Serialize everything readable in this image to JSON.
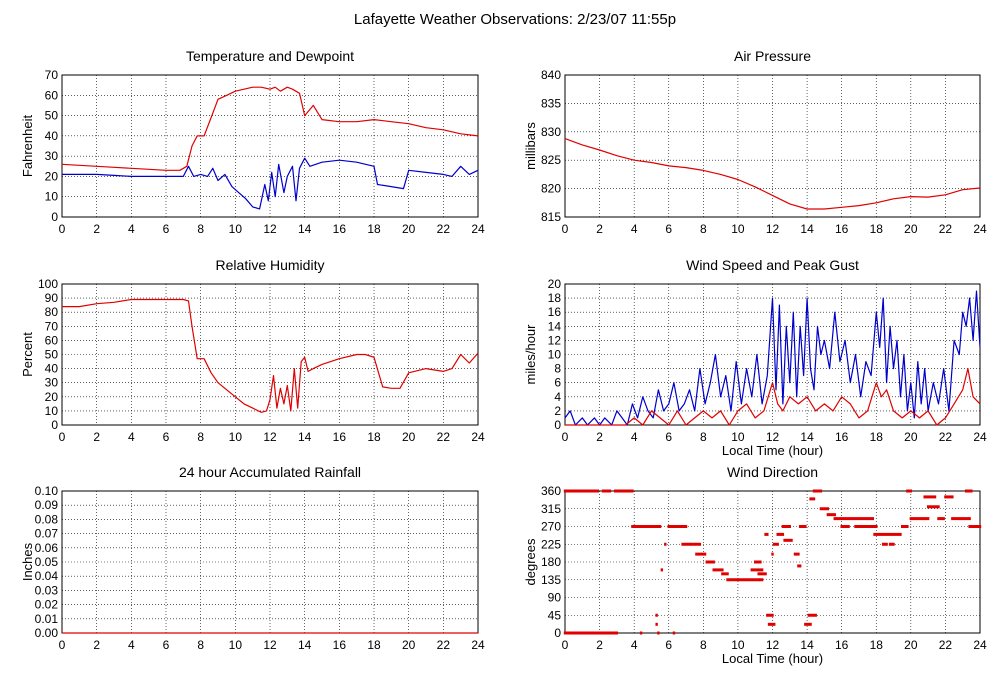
{
  "title": "Lafayette Weather Observations: 2/23/07 11:55p",
  "colors": {
    "red": "#e00000",
    "blue": "#0000cc",
    "grid": "#000000"
  },
  "chart_data": [
    {
      "type": "line",
      "title": "Temperature and Dewpoint",
      "xlabel": "",
      "ylabel": "Fahrenheit",
      "xlim": [
        0,
        24
      ],
      "ylim": [
        0,
        70
      ],
      "grid": true,
      "xticks": [
        "0",
        "2",
        "4",
        "6",
        "8",
        "10",
        "12",
        "14",
        "16",
        "18",
        "20",
        "22",
        "24"
      ],
      "yticks": [
        "0",
        "10",
        "20",
        "30",
        "40",
        "50",
        "60",
        "70"
      ],
      "series": [
        {
          "color": "#e00000",
          "x": [
            0,
            1,
            2,
            3,
            4,
            5,
            6,
            6.8,
            7.2,
            7.5,
            7.8,
            8.2,
            8.6,
            9,
            9.5,
            10,
            10.5,
            11,
            11.5,
            12,
            12.3,
            12.6,
            13,
            13.3,
            13.7,
            14,
            14.5,
            15,
            16,
            17,
            18,
            19,
            20,
            21,
            22,
            23,
            24
          ],
          "y": [
            26,
            25.5,
            25,
            24.5,
            24,
            23.5,
            23,
            23,
            25,
            35,
            40,
            40,
            49,
            58,
            60,
            62,
            63,
            64,
            64,
            63,
            64,
            62,
            64,
            63,
            61,
            50,
            55,
            48,
            47,
            47,
            48,
            47,
            46,
            44,
            43,
            41,
            40
          ]
        },
        {
          "color": "#0000cc",
          "x": [
            0,
            1,
            2,
            3,
            4,
            5,
            6,
            7,
            7.3,
            7.6,
            8,
            8.4,
            8.7,
            9,
            9.4,
            9.8,
            10.2,
            10.6,
            11,
            11.4,
            11.7,
            11.9,
            12.1,
            12.3,
            12.5,
            12.8,
            13,
            13.3,
            13.5,
            13.7,
            14,
            14.3,
            15,
            16,
            17,
            18,
            18.2,
            19,
            19.7,
            20,
            21,
            22,
            22.5,
            23,
            23.5,
            24
          ],
          "y": [
            21,
            21,
            21,
            20.5,
            20,
            20,
            20,
            20,
            25,
            20,
            21,
            20,
            24,
            18,
            21,
            15,
            12,
            9,
            5,
            4,
            16,
            8,
            22,
            10,
            26,
            12,
            20,
            25,
            8,
            24,
            29,
            25,
            27,
            28,
            27,
            25,
            16,
            15,
            14,
            23,
            22,
            21,
            20,
            25,
            21,
            23
          ]
        }
      ]
    },
    {
      "type": "line",
      "title": "Air Pressure",
      "xlabel": "",
      "ylabel": "millibars",
      "xlim": [
        0,
        24
      ],
      "ylim": [
        815,
        840
      ],
      "grid": true,
      "xticks": [
        "0",
        "2",
        "4",
        "6",
        "8",
        "10",
        "12",
        "14",
        "16",
        "18",
        "20",
        "22",
        "24"
      ],
      "yticks": [
        "815",
        "820",
        "825",
        "830",
        "835",
        "840"
      ],
      "series": [
        {
          "color": "#e00000",
          "x": [
            0,
            1,
            2,
            3,
            4,
            5,
            6,
            7,
            8,
            9,
            10,
            11,
            12,
            13,
            14,
            15,
            16,
            17,
            18,
            19,
            20,
            21,
            22,
            23,
            24
          ],
          "y": [
            828.8,
            827.7,
            826.8,
            825.8,
            825,
            824.6,
            824,
            823.7,
            823.2,
            822.5,
            821.6,
            820.3,
            818.8,
            817.3,
            816.4,
            816.4,
            816.7,
            817,
            817.5,
            818.2,
            818.6,
            818.5,
            818.9,
            819.8,
            820.1
          ]
        }
      ]
    },
    {
      "type": "line",
      "title": "Relative Humidity",
      "xlabel": "",
      "ylabel": "Percent",
      "xlim": [
        0,
        24
      ],
      "ylim": [
        0,
        100
      ],
      "grid": true,
      "xticks": [
        "0",
        "2",
        "4",
        "6",
        "8",
        "10",
        "12",
        "14",
        "16",
        "18",
        "20",
        "22",
        "24"
      ],
      "yticks": [
        "0",
        "10",
        "20",
        "30",
        "40",
        "50",
        "60",
        "70",
        "80",
        "90",
        "100"
      ],
      "series": [
        {
          "color": "#e00000",
          "x": [
            0,
            1,
            2,
            3,
            4,
            5,
            6,
            7,
            7.3,
            7.5,
            7.8,
            8.2,
            8.6,
            9,
            9.5,
            10,
            10.5,
            11,
            11.5,
            11.8,
            12,
            12.2,
            12.4,
            12.6,
            12.8,
            13,
            13.2,
            13.4,
            13.6,
            13.8,
            14,
            14.2,
            14.5,
            15,
            16,
            17,
            17.5,
            18,
            18.5,
            19,
            19.5,
            20,
            21,
            22,
            22.5,
            23,
            23.5,
            24
          ],
          "y": [
            84,
            84,
            86,
            87,
            89,
            89,
            89,
            89,
            88,
            70,
            47,
            47,
            37,
            30,
            25,
            20,
            15,
            12,
            9,
            10,
            18,
            35,
            12,
            26,
            15,
            28,
            10,
            40,
            12,
            45,
            48,
            38,
            40,
            43,
            47,
            50,
            50,
            48,
            27,
            26,
            26,
            37,
            40,
            38,
            40,
            50,
            44,
            51
          ]
        }
      ]
    },
    {
      "type": "line",
      "title": "Wind Speed and Peak Gust",
      "xlabel": "Local Time (hour)",
      "ylabel": "miles/hour",
      "xlim": [
        0,
        24
      ],
      "ylim": [
        0,
        20
      ],
      "grid": true,
      "xticks": [
        "0",
        "2",
        "4",
        "6",
        "8",
        "10",
        "12",
        "14",
        "16",
        "18",
        "20",
        "22",
        "24"
      ],
      "yticks": [
        "0",
        "2",
        "4",
        "6",
        "8",
        "10",
        "12",
        "14",
        "16",
        "18",
        "20"
      ],
      "series": [
        {
          "color": "#0000cc",
          "x": [
            0,
            0.3,
            0.6,
            1,
            1.3,
            1.7,
            2,
            2.3,
            2.7,
            3,
            3.3,
            3.6,
            3.9,
            4.2,
            4.5,
            4.8,
            5.1,
            5.4,
            5.7,
            6,
            6.3,
            6.6,
            6.9,
            7.2,
            7.5,
            7.8,
            8.1,
            8.4,
            8.7,
            9,
            9.3,
            9.6,
            9.9,
            10.2,
            10.5,
            10.8,
            11.1,
            11.4,
            11.7,
            12,
            12.2,
            12.4,
            12.6,
            12.8,
            13,
            13.2,
            13.4,
            13.6,
            13.8,
            14,
            14.2,
            14.4,
            14.6,
            14.8,
            15,
            15.3,
            15.6,
            15.9,
            16.2,
            16.5,
            16.8,
            17.1,
            17.4,
            17.7,
            18,
            18.2,
            18.4,
            18.6,
            18.8,
            19,
            19.2,
            19.4,
            19.6,
            19.8,
            20,
            20.2,
            20.4,
            20.6,
            20.8,
            21,
            21.3,
            21.6,
            21.9,
            22.2,
            22.5,
            22.8,
            23,
            23.2,
            23.4,
            23.6,
            23.8,
            24
          ],
          "y": [
            1,
            2,
            0,
            1,
            0,
            1,
            0,
            1,
            0,
            2,
            1,
            0,
            3,
            1,
            4,
            2,
            1,
            5,
            2,
            3,
            6,
            2,
            3,
            5,
            2,
            8,
            3,
            6,
            10,
            4,
            7,
            2,
            9,
            3,
            8,
            4,
            10,
            3,
            7,
            18,
            5,
            17,
            3,
            14,
            6,
            16,
            4,
            14,
            7,
            18,
            8,
            5,
            14,
            10,
            12,
            8,
            16,
            9,
            12,
            6,
            10,
            4,
            9,
            7,
            16,
            11,
            18,
            6,
            14,
            8,
            12,
            4,
            10,
            2,
            6,
            1,
            9,
            3,
            8,
            2,
            6,
            3,
            8,
            2,
            12,
            10,
            16,
            14,
            18,
            12,
            19,
            11
          ]
        },
        {
          "color": "#e00000",
          "x": [
            0,
            1,
            2,
            3,
            3.5,
            4,
            4.5,
            5,
            5.5,
            6,
            6.5,
            7,
            7.5,
            8,
            8.5,
            9,
            9.5,
            10,
            10.5,
            11,
            11.5,
            12,
            12.3,
            12.6,
            13,
            13.5,
            14,
            14.5,
            15,
            15.5,
            16,
            16.5,
            17,
            17.5,
            18,
            18.3,
            18.6,
            19,
            19.5,
            20,
            20.5,
            21,
            21.5,
            22,
            22.5,
            23,
            23.3,
            23.6,
            24
          ],
          "y": [
            0,
            0,
            0,
            0,
            0,
            1,
            0,
            2,
            1,
            0,
            2,
            0,
            1,
            2,
            1,
            2,
            0,
            2,
            3,
            1,
            2,
            6,
            3,
            2,
            4,
            3,
            4,
            2,
            3,
            2,
            4,
            3,
            1,
            2,
            6,
            4,
            5,
            2,
            1,
            2,
            1,
            2,
            0,
            1,
            3,
            5,
            8,
            4,
            3
          ]
        }
      ]
    },
    {
      "type": "line",
      "title": "24 hour Accumulated Rainfall",
      "xlabel": "",
      "ylabel": "Inches",
      "xlim": [
        0,
        24
      ],
      "ylim": [
        0,
        0.1
      ],
      "grid": true,
      "xticks": [
        "0",
        "2",
        "4",
        "6",
        "8",
        "10",
        "12",
        "14",
        "16",
        "18",
        "20",
        "22",
        "24"
      ],
      "yticks": [
        "0.00",
        "0.01",
        "0.02",
        "0.03",
        "0.04",
        "0.05",
        "0.06",
        "0.07",
        "0.08",
        "0.09",
        "0.10"
      ],
      "series": [
        {
          "color": "#e00000",
          "x": [
            0,
            24
          ],
          "y": [
            0,
            0
          ]
        }
      ]
    },
    {
      "type": "scatter",
      "title": "Wind Direction",
      "xlabel": "Local Time (hour)",
      "ylabel": "degrees",
      "xlim": [
        0,
        24
      ],
      "ylim": [
        0,
        360
      ],
      "grid": true,
      "xticks": [
        "0",
        "2",
        "4",
        "6",
        "8",
        "10",
        "12",
        "14",
        "16",
        "18",
        "20",
        "22",
        "24"
      ],
      "yticks": [
        "0",
        "45",
        "90",
        "135",
        "180",
        "225",
        "270",
        "315",
        "360"
      ],
      "series": [
        {
          "color": "#e00000",
          "segments": [
            [
              0,
              1.9,
              360
            ],
            [
              2.2,
              2.6,
              360
            ],
            [
              2.9,
              3.9,
              360
            ],
            [
              0,
              3.0,
              0
            ],
            [
              4.4,
              4.4,
              0
            ],
            [
              5.4,
              5.4,
              0
            ],
            [
              6.3,
              6.3,
              0
            ],
            [
              3.9,
              5.5,
              270
            ],
            [
              6,
              7.0,
              270
            ],
            [
              5.3,
              5.3,
              45
            ],
            [
              5.3,
              5.3,
              22
            ],
            [
              5.6,
              5.6,
              160
            ],
            [
              5.8,
              5.8,
              225
            ],
            [
              6.8,
              7.2,
              225
            ],
            [
              7.3,
              7.8,
              225
            ],
            [
              7.6,
              8.1,
              200
            ],
            [
              8.2,
              8.6,
              180
            ],
            [
              8.6,
              9.1,
              160
            ],
            [
              9.1,
              9.4,
              150
            ],
            [
              9.4,
              11.2,
              135
            ],
            [
              11.3,
              11.4,
              135
            ],
            [
              11.2,
              11.6,
              150
            ],
            [
              11.0,
              11.3,
              180
            ],
            [
              10.8,
              11.4,
              160
            ],
            [
              11.6,
              11.7,
              250
            ],
            [
              11.7,
              12.0,
              45
            ],
            [
              11.8,
              12.1,
              22
            ],
            [
              12.0,
              12.0,
              200
            ],
            [
              12.1,
              12.3,
              225
            ],
            [
              12.3,
              12.6,
              250
            ],
            [
              12.6,
              13.0,
              270
            ],
            [
              12.7,
              13.1,
              235
            ],
            [
              13.3,
              13.5,
              200
            ],
            [
              13.5,
              13.6,
              170
            ],
            [
              13.6,
              13.9,
              270
            ],
            [
              13.9,
              14.2,
              22
            ],
            [
              14.1,
              14.5,
              45
            ],
            [
              14.2,
              14.4,
              340
            ],
            [
              14.4,
              14.8,
              360
            ],
            [
              14.8,
              15.2,
              315
            ],
            [
              15.2,
              15.6,
              300
            ],
            [
              15.6,
              17.8,
              290
            ],
            [
              16.0,
              16.4,
              270
            ],
            [
              16.8,
              18.0,
              270
            ],
            [
              17.9,
              19.4,
              250
            ],
            [
              18.4,
              18.6,
              225
            ],
            [
              18.8,
              19.0,
              225
            ],
            [
              19.5,
              19.8,
              270
            ],
            [
              19.8,
              20.0,
              360
            ],
            [
              20.0,
              21.0,
              290
            ],
            [
              20.8,
              21.4,
              345
            ],
            [
              21.0,
              21.6,
              320
            ],
            [
              21.6,
              21.9,
              290
            ],
            [
              22.0,
              22.4,
              345
            ],
            [
              22.4,
              23.4,
              290
            ],
            [
              23.2,
              23.5,
              360
            ],
            [
              23.4,
              24,
              270
            ]
          ]
        }
      ]
    }
  ]
}
